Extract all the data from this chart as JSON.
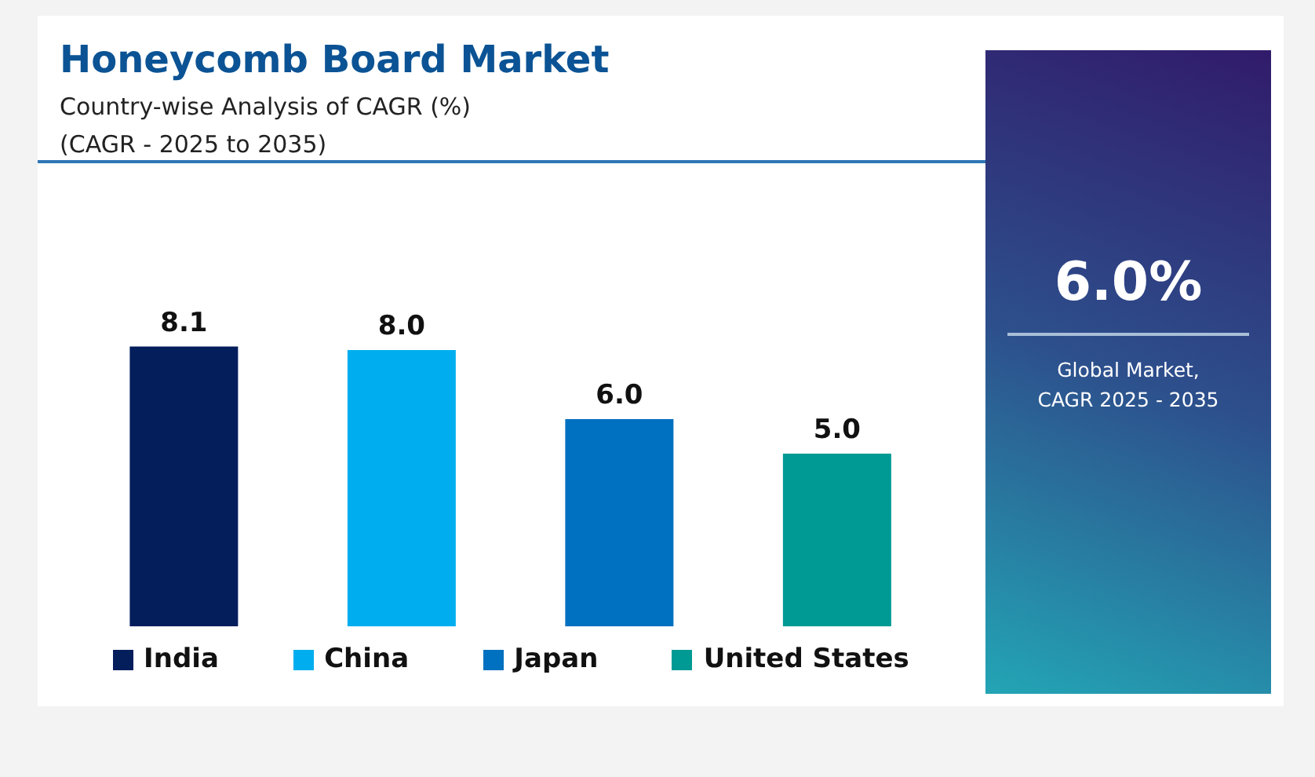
{
  "chart_data": {
    "type": "bar",
    "title": "Honeycomb Board Market",
    "subtitle": "Country-wise Analysis of CAGR (%)\n(CAGR - 2025 to 2035)",
    "categories": [
      "India",
      "China",
      "Japan",
      "United States"
    ],
    "values": [
      8.1,
      8.0,
      6.0,
      5.0
    ],
    "value_labels": [
      "8.1",
      "8.0",
      "6.0",
      "5.0"
    ],
    "colors": [
      "#041e5c",
      "#00aeef",
      "#0070c0",
      "#009a94"
    ],
    "tick_labels": false,
    "annotations": [
      "6.0%",
      "Global Market,\nCAGR 2025 - 2035"
    ]
  }
}
